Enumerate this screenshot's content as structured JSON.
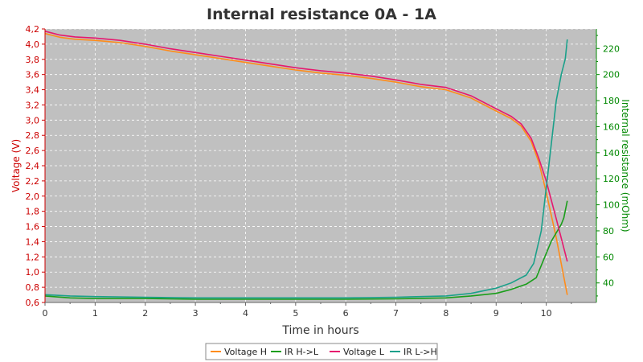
{
  "chart_data": {
    "type": "line",
    "title": "Internal resistance  0A - 1A",
    "xlabel": "Time in hours",
    "ylabel_left": "Voltage (V)",
    "ylabel_right": "Internal resistance (mOhm)",
    "xlim": [
      0,
      11
    ],
    "ylim_left": [
      0.6,
      4.2
    ],
    "ylim_right": [
      25,
      235
    ],
    "x_ticks": [
      0,
      1,
      2,
      3,
      4,
      5,
      6,
      7,
      8,
      9,
      10
    ],
    "y_left_ticks": [
      "0,6",
      "0,8",
      "1,0",
      "1,2",
      "1,4",
      "1,6",
      "1,8",
      "2,0",
      "2,2",
      "2,4",
      "2,6",
      "2,8",
      "3,0",
      "3,2",
      "3,4",
      "3,6",
      "3,8",
      "4,0",
      "4,2"
    ],
    "y_right_ticks": [
      40,
      60,
      80,
      100,
      120,
      140,
      160,
      180,
      200,
      220
    ],
    "grid": true,
    "legend_position": "bottom",
    "colors": {
      "voltage_h": "#ff8c1a",
      "ir_hl": "#1a9e1a",
      "voltage_l": "#e6186e",
      "ir_lh": "#1aa08a",
      "plot_bg": "#c0c0c0",
      "left_axis": "#cc0000",
      "right_axis": "#008800"
    },
    "series": [
      {
        "name": "Voltage H",
        "axis": "left",
        "color_key": "voltage_h",
        "points": [
          [
            0,
            4.14
          ],
          [
            0.3,
            4.09
          ],
          [
            0.6,
            4.065
          ],
          [
            1,
            4.05
          ],
          [
            1.5,
            4.02
          ],
          [
            2,
            3.97
          ],
          [
            2.5,
            3.91
          ],
          [
            3,
            3.86
          ],
          [
            3.5,
            3.81
          ],
          [
            4,
            3.76
          ],
          [
            4.5,
            3.71
          ],
          [
            5,
            3.66
          ],
          [
            5.5,
            3.62
          ],
          [
            6,
            3.59
          ],
          [
            6.5,
            3.55
          ],
          [
            7,
            3.5
          ],
          [
            7.5,
            3.44
          ],
          [
            8,
            3.4
          ],
          [
            8.5,
            3.29
          ],
          [
            9,
            3.12
          ],
          [
            9.3,
            3.02
          ],
          [
            9.5,
            2.92
          ],
          [
            9.7,
            2.72
          ],
          [
            9.85,
            2.45
          ],
          [
            10,
            2.05
          ],
          [
            10.2,
            1.45
          ],
          [
            10.42,
            0.7
          ]
        ]
      },
      {
        "name": "IR H->L",
        "axis": "right",
        "color_key": "ir_hl",
        "points": [
          [
            0,
            30
          ],
          [
            0.5,
            28.5
          ],
          [
            1,
            28
          ],
          [
            2,
            28
          ],
          [
            3,
            27.5
          ],
          [
            4,
            27.5
          ],
          [
            5,
            27.5
          ],
          [
            6,
            27.5
          ],
          [
            7,
            27.8
          ],
          [
            8,
            28.5
          ],
          [
            8.5,
            30
          ],
          [
            9,
            32
          ],
          [
            9.3,
            35
          ],
          [
            9.6,
            39
          ],
          [
            9.8,
            44
          ],
          [
            9.95,
            58
          ],
          [
            10.1,
            72
          ],
          [
            10.3,
            85
          ],
          [
            10.35,
            90
          ],
          [
            10.42,
            103
          ]
        ]
      },
      {
        "name": "Voltage L",
        "axis": "left",
        "color_key": "voltage_l",
        "points": [
          [
            0,
            4.17
          ],
          [
            0.3,
            4.12
          ],
          [
            0.6,
            4.095
          ],
          [
            1,
            4.08
          ],
          [
            1.5,
            4.05
          ],
          [
            2,
            4.0
          ],
          [
            2.5,
            3.94
          ],
          [
            3,
            3.89
          ],
          [
            3.5,
            3.84
          ],
          [
            4,
            3.79
          ],
          [
            4.5,
            3.74
          ],
          [
            5,
            3.69
          ],
          [
            5.5,
            3.65
          ],
          [
            6,
            3.62
          ],
          [
            6.5,
            3.58
          ],
          [
            7,
            3.53
          ],
          [
            7.5,
            3.47
          ],
          [
            8,
            3.43
          ],
          [
            8.5,
            3.32
          ],
          [
            9,
            3.15
          ],
          [
            9.3,
            3.05
          ],
          [
            9.5,
            2.95
          ],
          [
            9.7,
            2.76
          ],
          [
            9.85,
            2.5
          ],
          [
            10,
            2.2
          ],
          [
            10.2,
            1.7
          ],
          [
            10.42,
            1.14
          ]
        ]
      },
      {
        "name": "IR L->H",
        "axis": "right",
        "color_key": "ir_lh",
        "points": [
          [
            0,
            31
          ],
          [
            0.5,
            30
          ],
          [
            1,
            29.5
          ],
          [
            2,
            29
          ],
          [
            3,
            28.5
          ],
          [
            4,
            28.5
          ],
          [
            5,
            28.5
          ],
          [
            6,
            28.5
          ],
          [
            7,
            29
          ],
          [
            8,
            30
          ],
          [
            8.5,
            32
          ],
          [
            9,
            36
          ],
          [
            9.3,
            40
          ],
          [
            9.6,
            46
          ],
          [
            9.75,
            55
          ],
          [
            9.9,
            80
          ],
          [
            10.05,
            130
          ],
          [
            10.2,
            180
          ],
          [
            10.3,
            200
          ],
          [
            10.38,
            212
          ],
          [
            10.42,
            227
          ]
        ]
      }
    ]
  }
}
